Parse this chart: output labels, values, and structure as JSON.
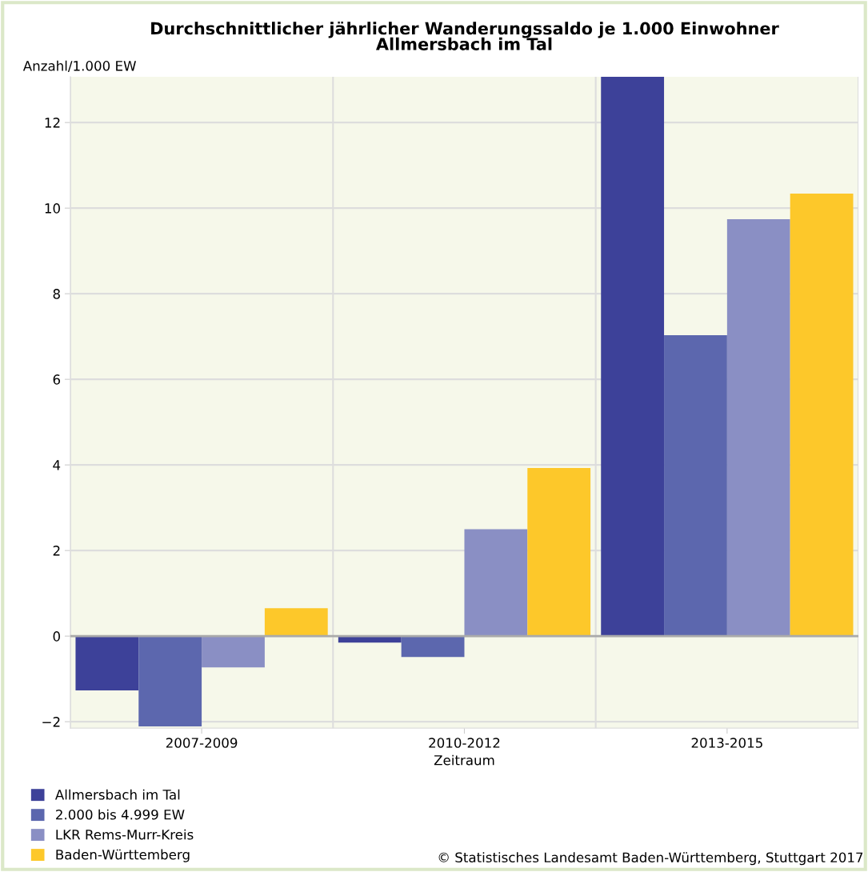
{
  "chart_data": {
    "type": "bar",
    "title": "Durchschnittlicher jährlicher Wanderungssaldo je 1.000 Einwohner\nAllmersbach im Tal",
    "ylabel": "Anzahl/1.000 EW",
    "xlabel": "Zeitraum",
    "categories": [
      "2007-2009",
      "2010-2012",
      "2013-2015"
    ],
    "series": [
      {
        "name": "Allmersbach im Tal",
        "color": "#3d4199",
        "values": [
          -1.27,
          -0.15,
          13.07
        ]
      },
      {
        "name": "2.000 bis 4.999 EW",
        "color": "#5c67ae",
        "values": [
          -2.11,
          -0.49,
          7.03
        ]
      },
      {
        "name": "LKR Rems-Murr-Kreis",
        "color": "#8a8fc4",
        "values": [
          -0.73,
          2.5,
          9.74
        ]
      },
      {
        "name": "Baden-Württemberg",
        "color": "#fdc82a",
        "values": [
          0.65,
          3.93,
          10.34
        ]
      }
    ],
    "ylim": [
      -2.15,
      13.07
    ],
    "yticks": [
      {
        "value": -2,
        "label": "−2"
      },
      0,
      2,
      4,
      6,
      8,
      10,
      12
    ],
    "ref_lines": [
      {
        "axis": "y",
        "value": 0,
        "color": "#aaaaaa"
      }
    ],
    "grid": true,
    "legend": "bottom left",
    "annotations": [
      "© Statistisches Landesamt Baden-Württemberg, Stuttgart 2017"
    ]
  }
}
